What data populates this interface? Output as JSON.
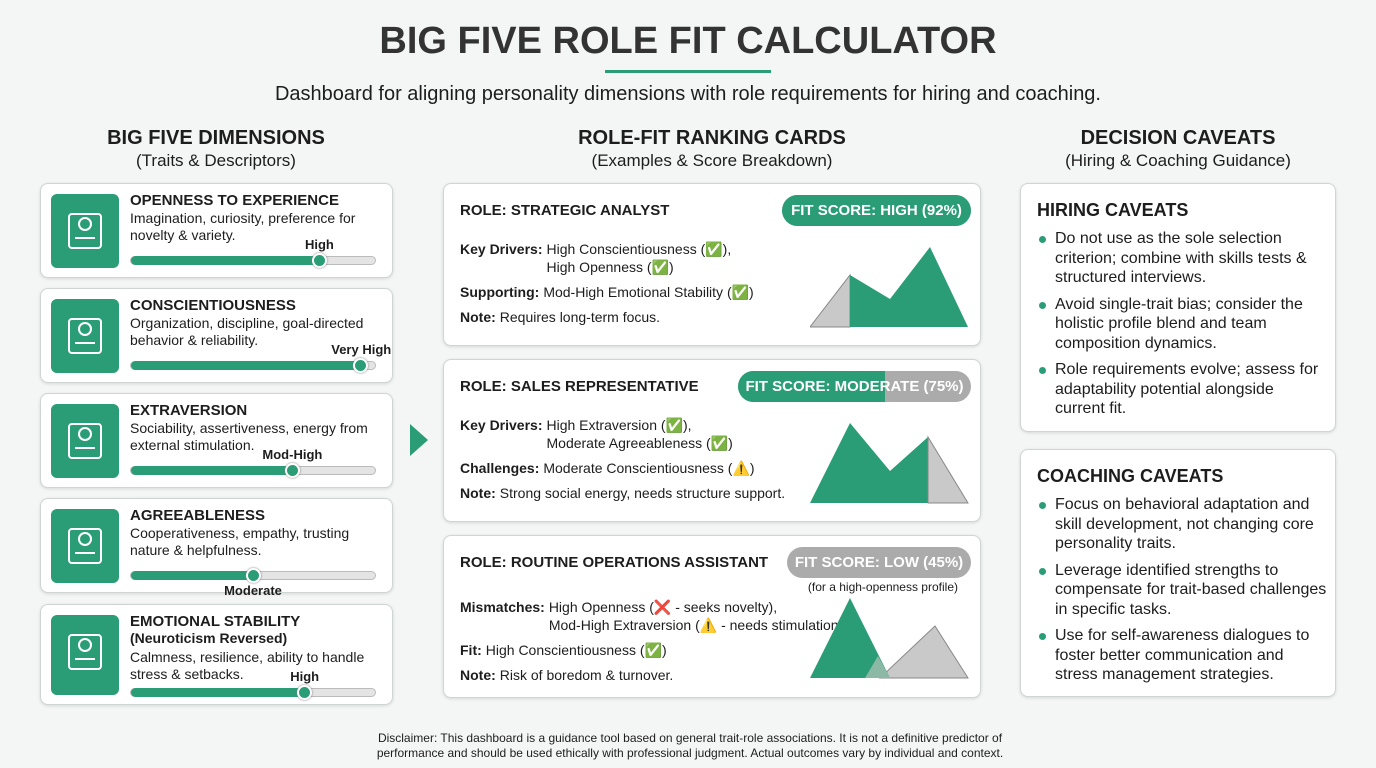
{
  "header": {
    "title": "BIG FIVE ROLE FIT CALCULATOR",
    "subtitle": "Dashboard for aligning personality dimensions with role requirements for hiring and coaching."
  },
  "dimensions": {
    "heading": "BIG FIVE DIMENSIONS",
    "subheading": "(Traits & Descriptors)",
    "items": [
      {
        "name": "OPENNESS TO EXPERIENCE",
        "description": "Imagination, curiosity, preference for novelty & variety.",
        "level": "High"
      },
      {
        "name": "CONSCIENTIOUSNESS",
        "description": "Organization, discipline, goal-directed behavior & reliability.",
        "level": "Very High"
      },
      {
        "name": "EXTRAVERSION",
        "description": "Sociability, assertiveness, energy from external stimulation.",
        "level": "Mod-High"
      },
      {
        "name": "AGREEABLENESS",
        "description": "Cooperativeness, empathy, trusting nature & helpfulness.",
        "level": "Moderate"
      },
      {
        "name": "EMOTIONAL STABILITY",
        "note": "(Neuroticism Reversed)",
        "description": "Calmness, resilience, ability to handle stress & setbacks.",
        "level": "High"
      }
    ]
  },
  "roles": {
    "heading": "ROLE-FIT RANKING CARDS",
    "subheading": "(Examples & Score Breakdown)",
    "cards": [
      {
        "role": "ROLE: STRATEGIC ANALYST",
        "fit": "FIT SCORE: HIGH (92%)",
        "rows": [
          {
            "label": "Key Drivers:",
            "lines": [
              "High Conscientiousness (✅),",
              "High Openness (✅)"
            ]
          },
          {
            "label": "Supporting:",
            "lines": [
              "Mod-High Emotional Stability (✅)"
            ]
          },
          {
            "label": "Note:",
            "lines": [
              "Requires long-term focus."
            ]
          }
        ]
      },
      {
        "role": "ROLE: SALES REPRESENTATIVE",
        "fit": "FIT SCORE: MODERATE (75%)",
        "rows": [
          {
            "label": "Key Drivers:",
            "lines": [
              "High Extraversion (✅),",
              "Moderate Agreeableness (✅)"
            ]
          },
          {
            "label": "Challenges:",
            "lines": [
              "Moderate Conscientiousness (⚠️)"
            ]
          },
          {
            "label": "Note:",
            "lines": [
              "Strong social energy, needs structure support."
            ]
          }
        ]
      },
      {
        "role": "ROLE: ROUTINE OPERATIONS ASSISTANT",
        "fit": "FIT SCORE: LOW (45%)",
        "fit_note": "(for a high-openness profile)",
        "rows": [
          {
            "label": "Mismatches:",
            "lines": [
              "High Openness (❌ - seeks novelty),",
              "Mod-High Extraversion (⚠️ - needs stimulation)"
            ]
          },
          {
            "label": "Fit:",
            "lines": [
              "High Conscientiousness (✅)"
            ]
          },
          {
            "label": "Note:",
            "lines": [
              "Risk of boredom & turnover."
            ]
          }
        ]
      }
    ]
  },
  "caveats": {
    "heading": "DECISION CAVEATS",
    "subheading": "(Hiring & Coaching Guidance)",
    "sections": [
      {
        "title": "HIRING CAVEATS",
        "bullets": [
          "Do not use as the sole selection criterion; combine with skills tests & structured interviews.",
          "Avoid single-trait bias; consider the holistic profile blend and team composition dynamics.",
          "Role requirements evolve; assess for adaptability potential alongside current fit."
        ]
      },
      {
        "title": "COACHING CAVEATS",
        "bullets": [
          "Focus on behavioral adaptation and skill development, not changing core personality traits.",
          "Leverage identified strengths to compensate for trait-based challenges in specific tasks.",
          "Use for self-awareness dialogues to foster better communication and stress management strategies."
        ]
      }
    ]
  },
  "disclaimer": "Disclaimer: This dashboard is a guidance tool based on general trait-role associations. It is not a definitive predictor of performance and should be used ethically with professional judgment. Actual outcomes vary by individual and context."
}
